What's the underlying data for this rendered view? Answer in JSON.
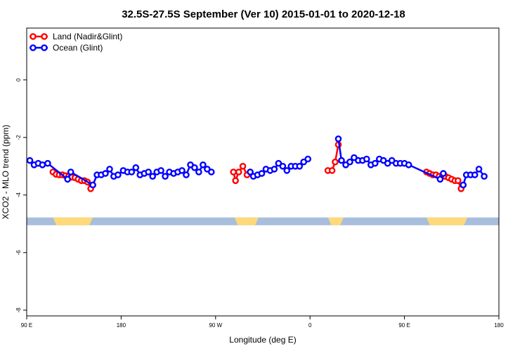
{
  "chart_data": {
    "type": "line",
    "title": "32.5S-27.5S September (Ver 10)   2015-01-01 to 2020-12-18",
    "xlabel": "Longitude (deg E)",
    "ylabel": "XCO2 - MLO trend (ppm)",
    "xlim": [
      90,
      540
    ],
    "ylim": [
      -8.2,
      1.8
    ],
    "x_ticks": [
      {
        "value": 90,
        "label": "90 E"
      },
      {
        "value": 180,
        "label": "180"
      },
      {
        "value": 270,
        "label": "90 W"
      },
      {
        "value": 360,
        "label": "0"
      },
      {
        "value": 450,
        "label": "90 E"
      },
      {
        "value": 540,
        "label": "180"
      }
    ],
    "y_ticks": [
      {
        "value": 0,
        "label": "0"
      },
      {
        "value": -2,
        "label": "-2"
      },
      {
        "value": -4,
        "label": "-4"
      },
      {
        "value": -6,
        "label": "-6"
      },
      {
        "value": -8,
        "label": "-8"
      }
    ],
    "legend_position": "top-left",
    "land_sea_bar": {
      "y_top": -4.78,
      "y_bottom": -5.05,
      "ocean_color": "#A8BEDC",
      "land_color": "#FFD97A",
      "land_ranges": [
        [
          115,
          153
        ],
        [
          288,
          311
        ],
        [
          377,
          392
        ],
        [
          471,
          510
        ]
      ]
    },
    "series": [
      {
        "name": "Land (Nadir&Glint)",
        "color": "#FF0000",
        "segments": [
          [
            [
              115,
              -3.2
            ],
            [
              118,
              -3.28
            ],
            [
              121,
              -3.3
            ],
            [
              124,
              -3.3
            ],
            [
              127,
              -3.33
            ],
            [
              130,
              -3.35
            ],
            [
              133,
              -3.38
            ],
            [
              136,
              -3.4
            ],
            [
              139,
              -3.45
            ],
            [
              142,
              -3.5
            ],
            [
              145,
              -3.5
            ],
            [
              148,
              -3.55
            ],
            [
              151,
              -3.78
            ],
            [
              153,
              -3.65
            ]
          ],
          [
            [
              287,
              -3.2
            ],
            [
              289,
              -3.5
            ],
            [
              292,
              -3.2
            ],
            [
              296,
              -3.0
            ],
            [
              300,
              -3.3
            ],
            [
              303,
              -3.2
            ]
          ],
          [
            [
              377,
              -3.15
            ],
            [
              381,
              -3.15
            ],
            [
              384,
              -2.85
            ],
            [
              387,
              -2.25
            ]
          ],
          [
            [
              471,
              -3.2
            ],
            [
              474,
              -3.25
            ],
            [
              477,
              -3.3
            ],
            [
              480,
              -3.3
            ],
            [
              483,
              -3.35
            ],
            [
              486,
              -3.35
            ],
            [
              489,
              -3.35
            ],
            [
              492,
              -3.4
            ],
            [
              495,
              -3.45
            ],
            [
              498,
              -3.5
            ],
            [
              501,
              -3.5
            ],
            [
              504,
              -3.78
            ],
            [
              506,
              -3.65
            ]
          ]
        ]
      },
      {
        "name": "Ocean (Glint)",
        "color": "#0000FF",
        "segments": [
          [
            [
              93,
              -2.8
            ],
            [
              97,
              -2.95
            ],
            [
              101,
              -2.9
            ],
            [
              105,
              -2.95
            ],
            [
              110,
              -2.9
            ],
            [
              129,
              -3.45
            ],
            [
              132,
              -3.2
            ],
            [
              153,
              -3.65
            ],
            [
              157,
              -3.3
            ],
            [
              161,
              -3.3
            ],
            [
              165,
              -3.25
            ],
            [
              169,
              -3.1
            ],
            [
              173,
              -3.35
            ],
            [
              177,
              -3.3
            ],
            [
              182,
              -3.15
            ],
            [
              186,
              -3.2
            ],
            [
              190,
              -3.2
            ],
            [
              194,
              -3.05
            ],
            [
              198,
              -3.3
            ],
            [
              202,
              -3.25
            ],
            [
              206,
              -3.2
            ],
            [
              210,
              -3.35
            ],
            [
              214,
              -3.2
            ],
            [
              218,
              -3.15
            ],
            [
              222,
              -3.35
            ],
            [
              226,
              -3.2
            ],
            [
              230,
              -3.25
            ],
            [
              234,
              -3.2
            ],
            [
              238,
              -3.15
            ],
            [
              242,
              -3.3
            ],
            [
              246,
              -2.95
            ],
            [
              250,
              -3.05
            ],
            [
              254,
              -3.2
            ],
            [
              258,
              -2.95
            ],
            [
              262,
              -3.1
            ],
            [
              266,
              -3.2
            ]
          ],
          [
            [
              303,
              -3.2
            ],
            [
              306,
              -3.35
            ],
            [
              310,
              -3.3
            ],
            [
              314,
              -3.25
            ],
            [
              318,
              -3.1
            ],
            [
              322,
              -3.15
            ],
            [
              326,
              -3.1
            ],
            [
              330,
              -2.9
            ],
            [
              334,
              -3.0
            ],
            [
              338,
              -3.15
            ],
            [
              342,
              -3.0
            ],
            [
              346,
              -3.0
            ],
            [
              350,
              -3.0
            ],
            [
              354,
              -2.85
            ],
            [
              358,
              -2.75
            ]
          ],
          [
            [
              387,
              -2.05
            ],
            [
              390,
              -2.8
            ],
            [
              394,
              -2.95
            ],
            [
              398,
              -2.85
            ],
            [
              402,
              -2.7
            ],
            [
              406,
              -2.8
            ],
            [
              410,
              -2.8
            ],
            [
              414,
              -2.75
            ],
            [
              418,
              -2.95
            ],
            [
              422,
              -2.9
            ],
            [
              426,
              -2.75
            ],
            [
              430,
              -2.8
            ],
            [
              434,
              -2.9
            ],
            [
              438,
              -2.8
            ],
            [
              442,
              -2.9
            ],
            [
              446,
              -2.9
            ],
            [
              450,
              -2.9
            ],
            [
              454,
              -2.95
            ],
            [
              484,
              -3.45
            ],
            [
              487,
              -3.25
            ]
          ],
          [
            [
              506,
              -3.65
            ],
            [
              509,
              -3.3
            ],
            [
              513,
              -3.3
            ],
            [
              517,
              -3.3
            ],
            [
              521,
              -3.1
            ],
            [
              526,
              -3.35
            ]
          ]
        ]
      }
    ]
  }
}
